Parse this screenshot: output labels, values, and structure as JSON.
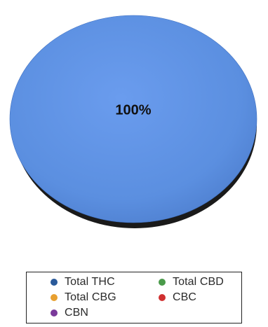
{
  "chart_data": {
    "type": "pie",
    "slices": [
      {
        "name": "Total THC",
        "value": 100,
        "color": "#5b8fe0",
        "label": "100%"
      },
      {
        "name": "Total CBD",
        "value": 0,
        "color": "#4a9a4a"
      },
      {
        "name": "Total CBG",
        "value": 0,
        "color": "#e8a030"
      },
      {
        "name": "CBC",
        "value": 0,
        "color": "#d03030"
      },
      {
        "name": "CBN",
        "value": 0,
        "color": "#7a3a9a"
      }
    ],
    "legend": {
      "placement": "bottom",
      "items": [
        {
          "label": "Total THC",
          "color": "#2a5a9a"
        },
        {
          "label": "Total CBD",
          "color": "#4a9a4a"
        },
        {
          "label": "Total CBG",
          "color": "#e8a030"
        },
        {
          "label": "CBC",
          "color": "#d03030"
        },
        {
          "label": "CBN",
          "color": "#7a3a9a"
        }
      ]
    }
  }
}
